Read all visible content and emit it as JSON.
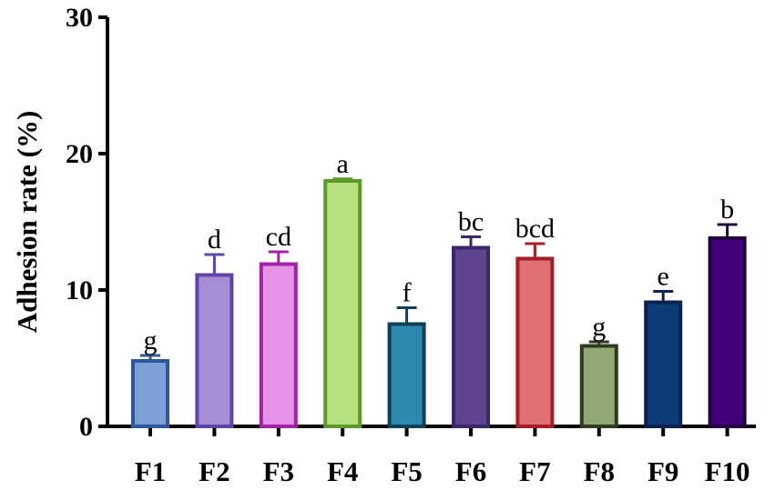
{
  "chart_data": {
    "type": "bar",
    "title": "",
    "xlabel": "",
    "ylabel": "Adhesion rate (%)",
    "ylim": [
      0,
      30
    ],
    "yticks": [
      0,
      10,
      20,
      30
    ],
    "grid": false,
    "categories": [
      "F1",
      "F2",
      "F3",
      "F4",
      "F5",
      "F6",
      "F7",
      "F8",
      "F9",
      "F10"
    ],
    "values": [
      4.8,
      11.1,
      11.9,
      18.0,
      7.5,
      13.1,
      12.3,
      5.9,
      9.1,
      13.8
    ],
    "errors": [
      0.4,
      1.5,
      0.9,
      0.15,
      1.2,
      0.8,
      1.1,
      0.3,
      0.8,
      1.0
    ],
    "significance_labels": [
      "g",
      "d",
      "cd",
      "a",
      "f",
      "bc",
      "bcd",
      "g",
      "e",
      "b"
    ],
    "fill_colors": [
      "#7c9fd6",
      "#a68ed6",
      "#e693e6",
      "#b9e07e",
      "#2f88ad",
      "#60448f",
      "#e06f76",
      "#8fa874",
      "#0e3c79",
      "#420079"
    ],
    "edge_colors": [
      "#2e579c",
      "#5e43a8",
      "#a322a9",
      "#5a9b28",
      "#103f5a",
      "#3b2769",
      "#a61d28",
      "#2e3b20",
      "#08224d",
      "#210041"
    ]
  }
}
